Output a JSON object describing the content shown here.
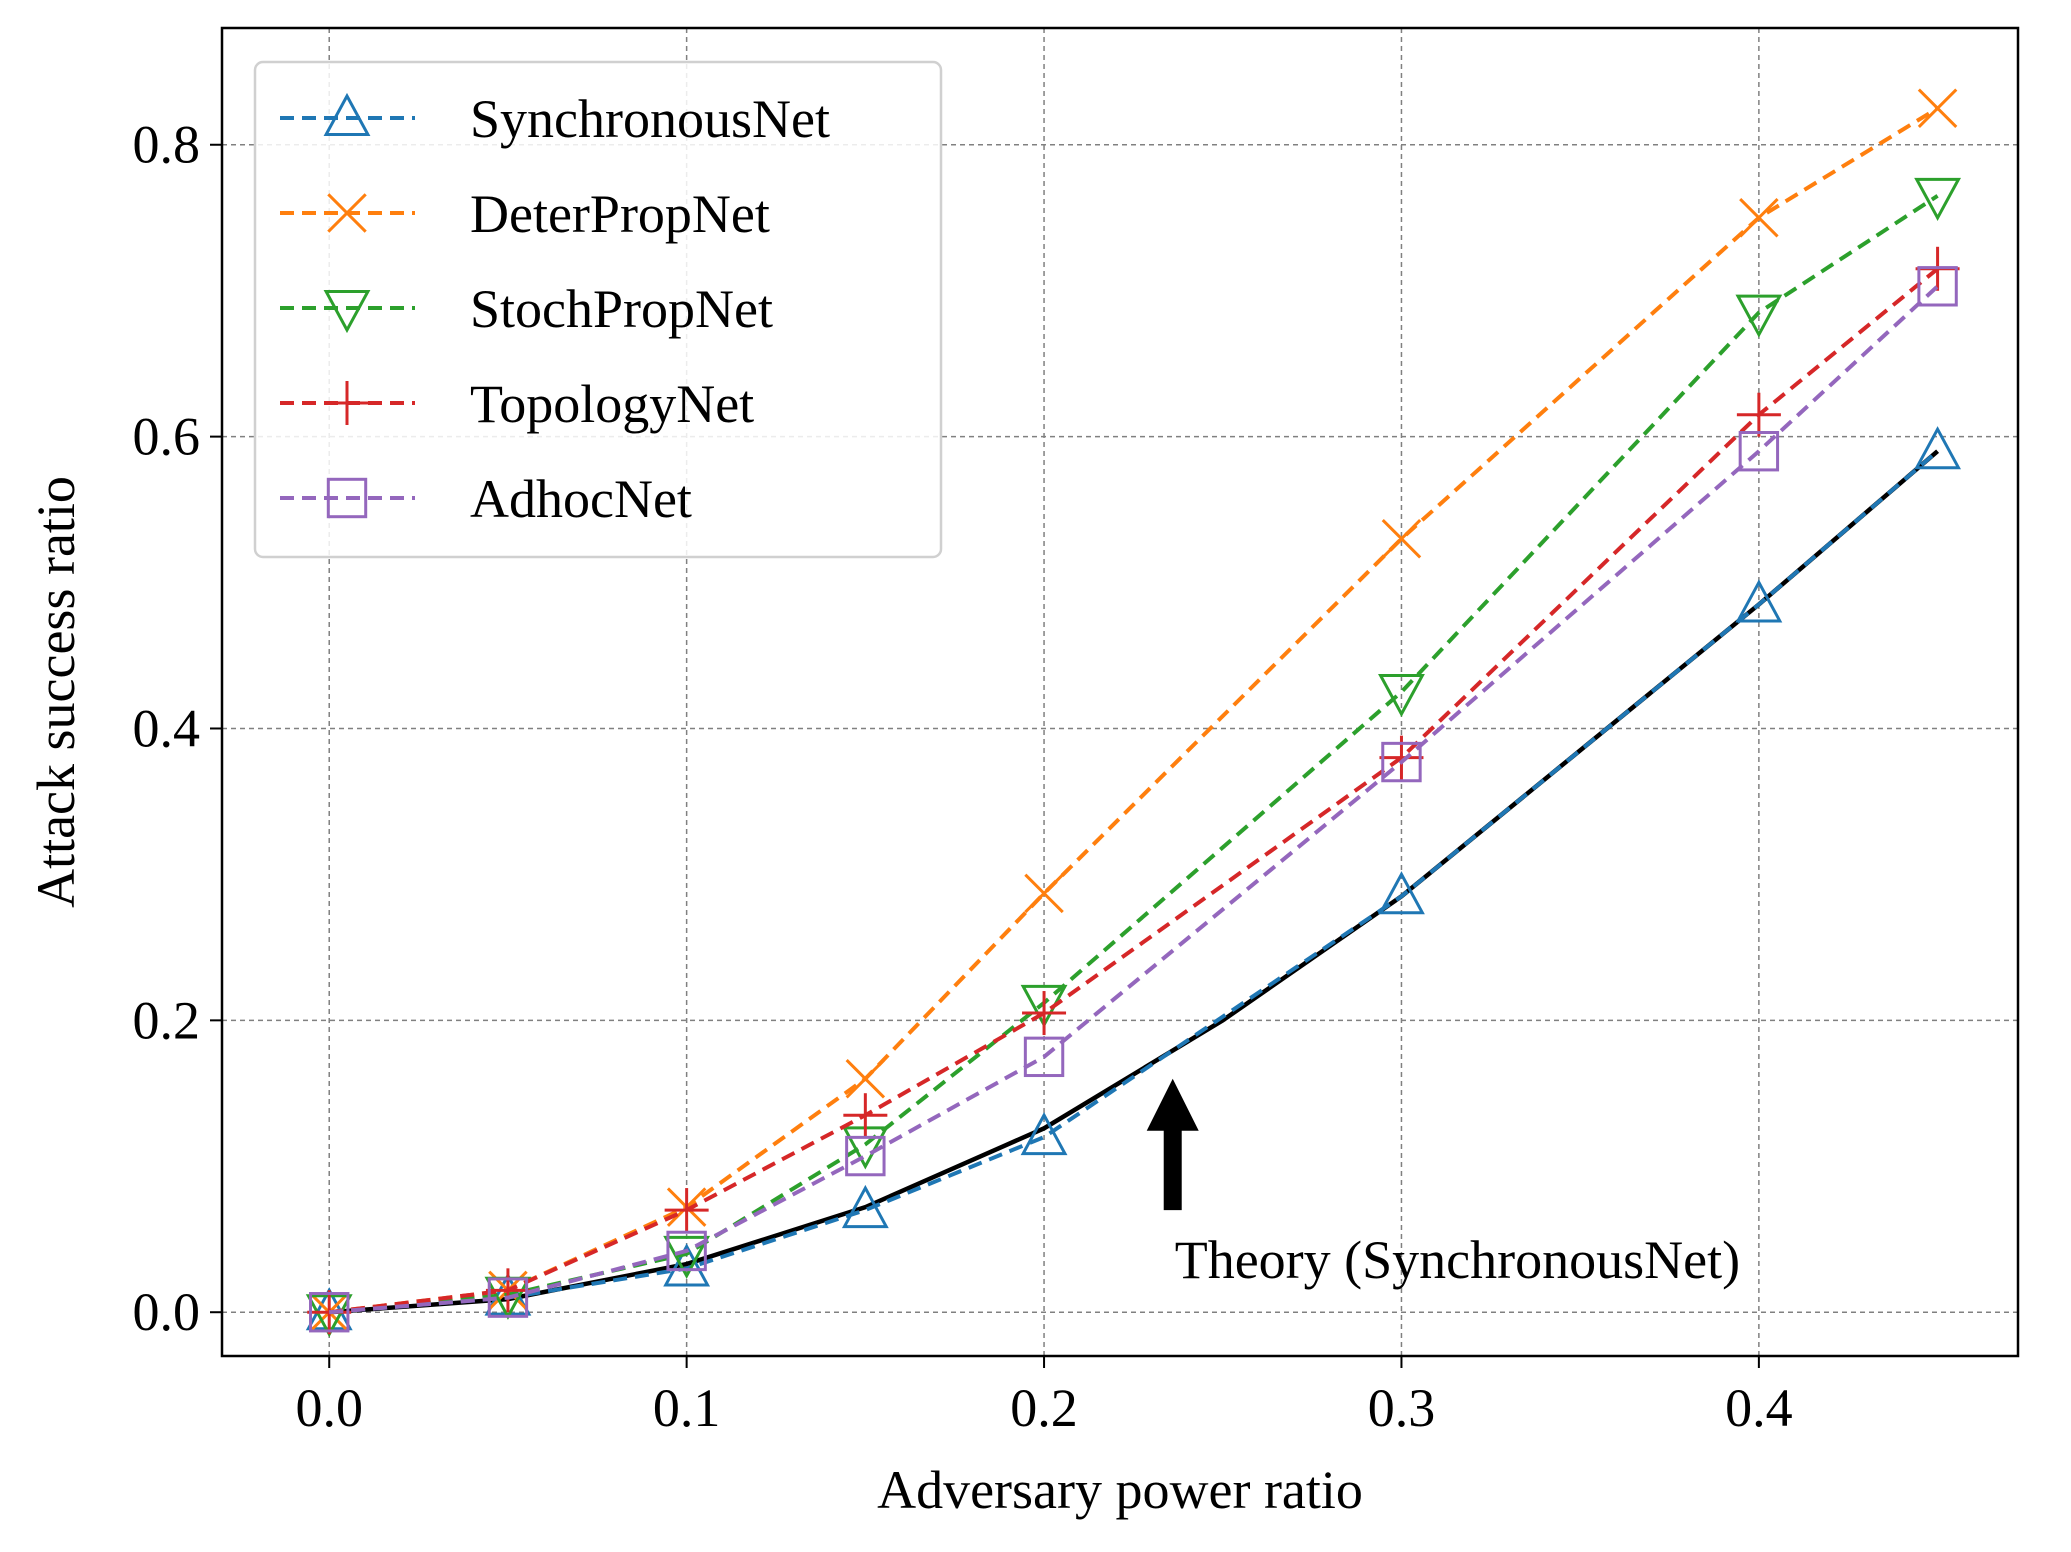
{
  "chart_data": {
    "type": "line",
    "xlabel": "Adversary power ratio",
    "ylabel": "Attack success ratio",
    "xlim": [
      -0.03,
      0.4725
    ],
    "ylim": [
      -0.03,
      0.88
    ],
    "xticks": [
      0.0,
      0.1,
      0.2,
      0.3,
      0.4
    ],
    "xtick_labels": [
      "0.0",
      "0.1",
      "0.2",
      "0.3",
      "0.4"
    ],
    "yticks": [
      0.0,
      0.2,
      0.4,
      0.6,
      0.8
    ],
    "ytick_labels": [
      "0.0",
      "0.2",
      "0.4",
      "0.6",
      "0.8"
    ],
    "grid": true,
    "legend_position": "top-left",
    "x": [
      0.0,
      0.05,
      0.1,
      0.15,
      0.2,
      0.3,
      0.4,
      0.45
    ],
    "series": [
      {
        "name": "SynchronousNet",
        "color": "#1f77b4",
        "marker": "triangle-up",
        "line": "dashed",
        "values": [
          0.0,
          0.01,
          0.03,
          0.07,
          0.12,
          0.285,
          0.485,
          0.59
        ]
      },
      {
        "name": "DeterPropNet",
        "color": "#ff7f0e",
        "marker": "x",
        "line": "dashed",
        "values": [
          0.0,
          0.015,
          0.072,
          0.16,
          0.287,
          0.53,
          0.75,
          0.825
        ]
      },
      {
        "name": "StochPropNet",
        "color": "#2ca02c",
        "marker": "triangle-down",
        "line": "dashed",
        "values": [
          0.0,
          0.012,
          0.04,
          0.115,
          0.212,
          0.425,
          0.685,
          0.765
        ]
      },
      {
        "name": "TopologyNet",
        "color": "#d62728",
        "marker": "plus",
        "line": "dashed",
        "values": [
          0.0,
          0.015,
          0.07,
          0.135,
          0.205,
          0.38,
          0.615,
          0.715
        ]
      },
      {
        "name": "AdhocNet",
        "color": "#9467bd",
        "marker": "square",
        "line": "dashed",
        "values": [
          0.0,
          0.01,
          0.042,
          0.107,
          0.175,
          0.377,
          0.59,
          0.703
        ]
      }
    ],
    "theory": {
      "color": "#000000",
      "x": [
        0.0,
        0.05,
        0.1,
        0.15,
        0.2,
        0.25,
        0.3,
        0.35,
        0.4,
        0.45
      ],
      "values": [
        0.0,
        0.009,
        0.033,
        0.072,
        0.126,
        0.2,
        0.285,
        0.385,
        0.485,
        0.59
      ]
    },
    "annotation": {
      "text": "Theory (SynchronousNet)",
      "arrow_tip": [
        0.236,
        0.16
      ],
      "arrow_tail": [
        0.236,
        0.07
      ]
    }
  }
}
